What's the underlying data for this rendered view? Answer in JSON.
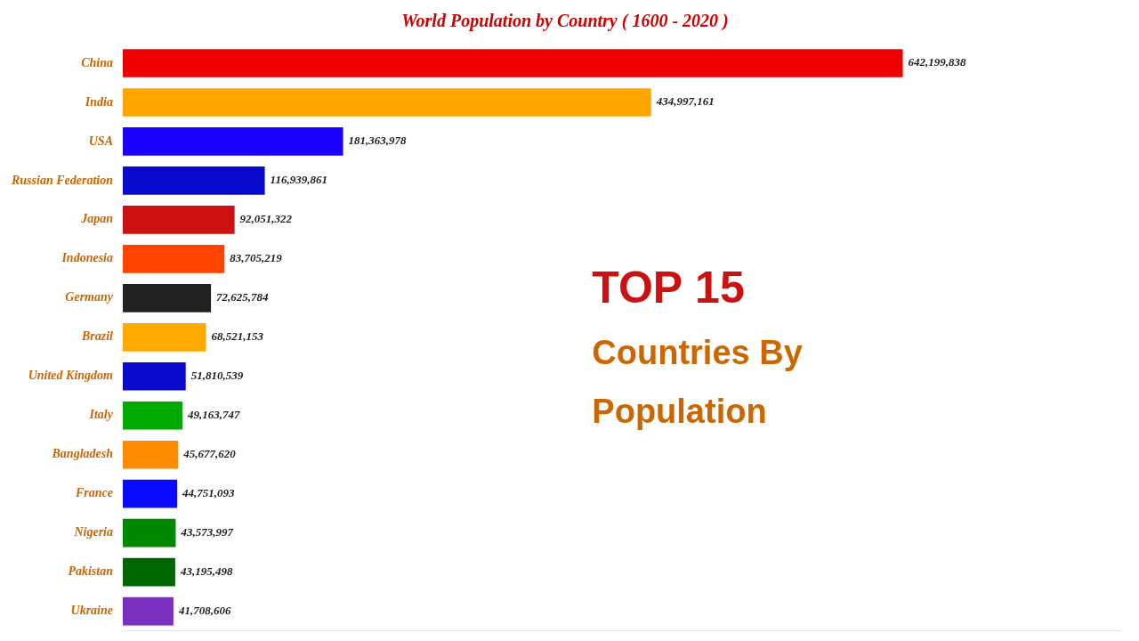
{
  "chart_data": {
    "type": "bar",
    "orientation": "horizontal",
    "title": "World Population by Country ( 1600 - 2020 )",
    "annotations": [
      "TOP 15",
      "Countries By",
      "Population"
    ],
    "categories": [
      "China",
      "India",
      "USA",
      "Russian Federation",
      "Japan",
      "Indonesia",
      "Germany",
      "Brazil",
      "United Kingdom",
      "Italy",
      "Bangladesh",
      "France",
      "Nigeria",
      "Pakistan",
      "Ukraine"
    ],
    "values": [
      642199838,
      434997161,
      181363978,
      116939861,
      92051322,
      83705219,
      72625784,
      68521153,
      51810539,
      49163747,
      45677620,
      44751093,
      43573997,
      43195498,
      41708606
    ],
    "value_labels": [
      "642,199,838",
      "434,997,161",
      "181,363,978",
      "116,939,861",
      "92,051,322",
      "83,705,219",
      "72,625,784",
      "68,521,153",
      "51,810,539",
      "49,163,747",
      "45,677,620",
      "44,751,093",
      "43,573,997",
      "43,195,498",
      "41,708,606"
    ],
    "colors": [
      "#ee0000",
      "#ffa500",
      "#1a00ff",
      "#0a0acd",
      "#cc1111",
      "#ff4400",
      "#222222",
      "#ffaa00",
      "#0a0acd",
      "#00aa00",
      "#ff8c00",
      "#0a0aff",
      "#008800",
      "#006600",
      "#7b2fbe"
    ],
    "xlim": [
      0,
      822015792.64
    ],
    "data_labels": true,
    "tick_labels": "y",
    "grid": false
  }
}
